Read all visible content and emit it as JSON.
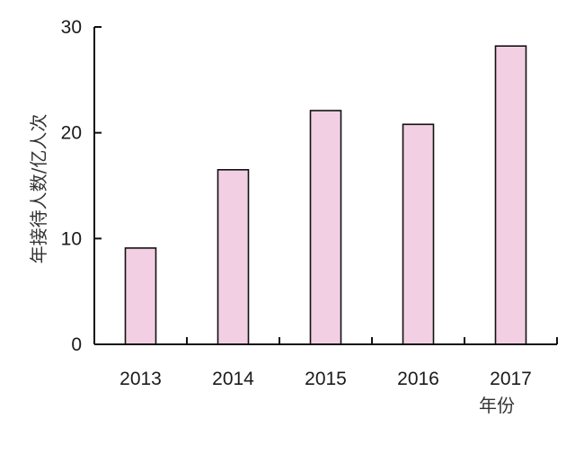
{
  "chart_data": {
    "type": "bar",
    "categories": [
      "2013",
      "2014",
      "2015",
      "2016",
      "2017"
    ],
    "values": [
      9.1,
      16.5,
      22.1,
      20.8,
      28.2
    ],
    "ylabel": "年接待人数/亿人次",
    "xlabel": "年份",
    "ylim": [
      0,
      30
    ],
    "yticks": [
      "0",
      "10",
      "20",
      "30"
    ],
    "grid": false,
    "legend": "none",
    "bar_color": "#f2cfe3",
    "bar_stroke": "#111111"
  }
}
